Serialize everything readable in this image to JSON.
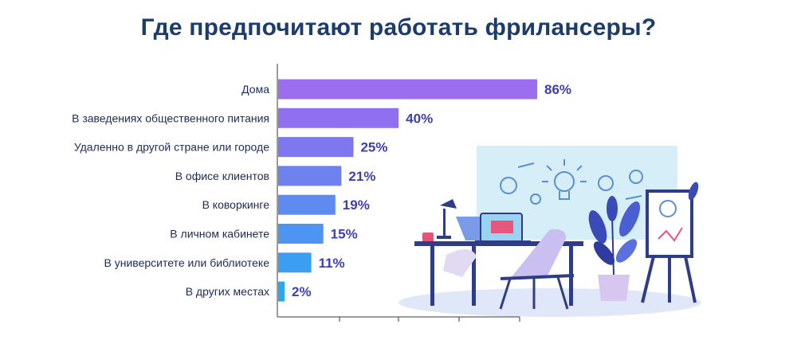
{
  "chart_data": {
    "type": "bar",
    "orientation": "horizontal",
    "title": "Где предпочитают работать фрилансеры?",
    "categories": [
      "Дома",
      "В заведениях общественного питания",
      "Удаленно в другой стране или городе",
      "В офисе клиентов",
      "В коворкинге",
      "В личном кабинете",
      "В университете или библиотеке",
      "В других местах"
    ],
    "values": [
      86,
      40,
      25,
      21,
      19,
      15,
      11,
      2
    ],
    "value_labels": [
      "86%",
      "40%",
      "25%",
      "21%",
      "19%",
      "15%",
      "11%",
      "2%"
    ],
    "unit": "%",
    "xlim": [
      0,
      100
    ],
    "grid": false,
    "legend": "none",
    "colors": [
      "#9b6ef0",
      "#9070f0",
      "#7e77ef",
      "#6f80ef",
      "#5f8af0",
      "#4e95f1",
      "#3c9ef2",
      "#2aa7f3"
    ]
  }
}
